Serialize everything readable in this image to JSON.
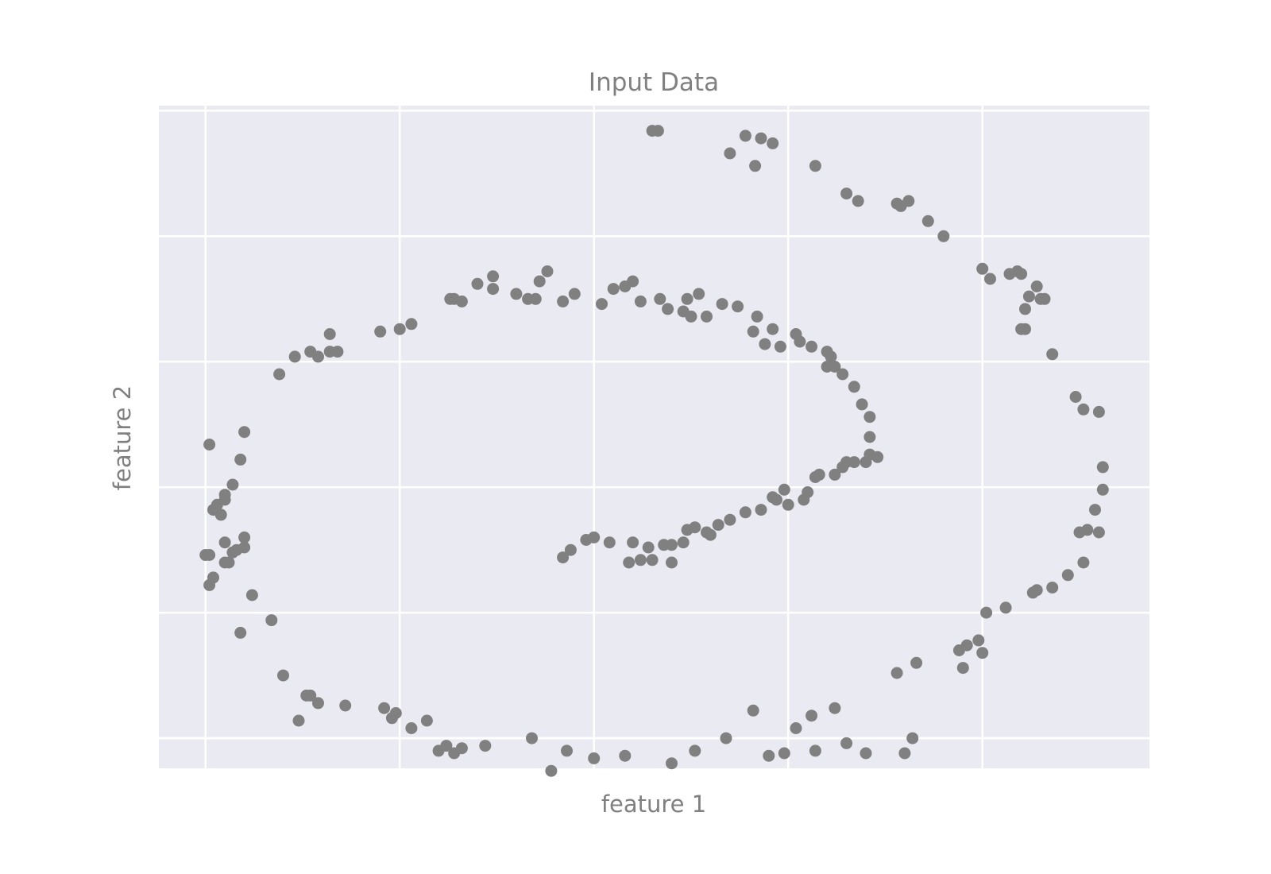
{
  "chart_data": {
    "type": "scatter",
    "title": "Input Data",
    "xlabel": "feature 1",
    "ylabel": "feature 2",
    "xlim": [
      -1.12,
      1.43
    ],
    "ylim": [
      -1.12,
      1.52
    ],
    "x_gridlines": [
      -1.0,
      -0.5,
      0.0,
      0.5,
      1.0
    ],
    "y_gridlines": [
      -1.0,
      -0.5,
      0.0,
      0.5,
      1.0,
      1.5
    ],
    "tick_labels_visible": false,
    "grid": true,
    "background_color": "#eaeaf2",
    "grid_color": "#ffffff",
    "point_color": "#808080",
    "points": [
      [
        0.15,
        1.42
      ],
      [
        0.165,
        1.42
      ],
      [
        0.39,
        1.4
      ],
      [
        0.43,
        1.39
      ],
      [
        0.35,
        1.33
      ],
      [
        0.46,
        1.37
      ],
      [
        0.415,
        1.28
      ],
      [
        0.57,
        1.28
      ],
      [
        0.65,
        1.17
      ],
      [
        0.68,
        1.14
      ],
      [
        0.78,
        1.13
      ],
      [
        0.81,
        1.14
      ],
      [
        0.79,
        1.12
      ],
      [
        0.86,
        1.06
      ],
      [
        0.9,
        1.0
      ],
      [
        1.0,
        0.87
      ],
      [
        1.02,
        0.83
      ],
      [
        1.07,
        0.85
      ],
      [
        1.1,
        0.85
      ],
      [
        1.09,
        0.86
      ],
      [
        1.14,
        0.8
      ],
      [
        1.11,
        0.71
      ],
      [
        1.12,
        0.76
      ],
      [
        1.15,
        0.75
      ],
      [
        1.16,
        0.75
      ],
      [
        1.1,
        0.63
      ],
      [
        1.11,
        0.63
      ],
      [
        1.18,
        0.53
      ],
      [
        1.24,
        0.36
      ],
      [
        1.26,
        0.31
      ],
      [
        1.3,
        0.3
      ],
      [
        1.31,
        0.08
      ],
      [
        1.31,
        -0.01
      ],
      [
        1.29,
        -0.09
      ],
      [
        1.3,
        -0.18
      ],
      [
        1.27,
        -0.17
      ],
      [
        1.25,
        -0.18
      ],
      [
        1.26,
        -0.3
      ],
      [
        1.22,
        -0.35
      ],
      [
        1.18,
        -0.4
      ],
      [
        1.14,
        -0.41
      ],
      [
        1.13,
        -0.42
      ],
      [
        1.01,
        -0.5
      ],
      [
        1.06,
        -0.48
      ],
      [
        0.99,
        -0.61
      ],
      [
        1.0,
        -0.66
      ],
      [
        0.96,
        -0.63
      ],
      [
        0.94,
        -0.65
      ],
      [
        0.95,
        -0.72
      ],
      [
        0.78,
        -0.74
      ],
      [
        0.83,
        -0.7
      ],
      [
        0.2,
        -1.1
      ],
      [
        0.26,
        -1.05
      ],
      [
        0.52,
        -0.96
      ],
      [
        0.56,
        -0.91
      ],
      [
        0.62,
        -0.88
      ],
      [
        0.41,
        -0.89
      ],
      [
        0.34,
        -1.0
      ],
      [
        0.45,
        -1.07
      ],
      [
        0.49,
        -1.06
      ],
      [
        0.82,
        -1.0
      ],
      [
        0.8,
        -1.06
      ],
      [
        0.7,
        -1.06
      ],
      [
        0.65,
        -1.02
      ],
      [
        0.57,
        -1.05
      ],
      [
        0.0,
        -1.08
      ],
      [
        0.08,
        -1.07
      ],
      [
        -0.16,
        -1.0
      ],
      [
        -0.07,
        -1.05
      ],
      [
        -0.11,
        -1.13
      ],
      [
        -0.4,
        -1.05
      ],
      [
        -0.34,
        -1.04
      ],
      [
        -0.28,
        -1.03
      ],
      [
        -0.36,
        -1.06
      ],
      [
        -0.38,
        -1.03
      ],
      [
        -0.47,
        -0.96
      ],
      [
        -0.43,
        -0.93
      ],
      [
        -0.54,
        -0.88
      ],
      [
        -0.51,
        -0.9
      ],
      [
        -0.52,
        -0.92
      ],
      [
        -0.8,
        -0.75
      ],
      [
        -0.74,
        -0.83
      ],
      [
        -0.73,
        -0.83
      ],
      [
        -0.71,
        -0.86
      ],
      [
        -0.64,
        -0.87
      ],
      [
        -0.76,
        -0.93
      ],
      [
        -0.83,
        -0.53
      ],
      [
        -0.91,
        -0.58
      ],
      [
        -0.99,
        -0.39
      ],
      [
        -0.98,
        -0.36
      ],
      [
        -0.95,
        -0.3
      ],
      [
        -0.94,
        -0.3
      ],
      [
        -0.92,
        -0.25
      ],
      [
        -0.9,
        -0.2
      ],
      [
        -0.88,
        -0.43
      ],
      [
        -0.9,
        -0.24
      ],
      [
        -0.93,
        -0.26
      ],
      [
        -0.95,
        -0.22
      ],
      [
        -1.0,
        -0.27
      ],
      [
        -0.99,
        -0.27
      ],
      [
        -0.97,
        -0.07
      ],
      [
        -0.98,
        -0.09
      ],
      [
        -0.96,
        -0.11
      ],
      [
        -0.95,
        -0.05
      ],
      [
        -0.95,
        -0.03
      ],
      [
        -0.93,
        0.01
      ],
      [
        -0.91,
        0.11
      ],
      [
        -0.9,
        0.22
      ],
      [
        -0.99,
        0.17
      ],
      [
        -0.81,
        0.45
      ],
      [
        -0.77,
        0.52
      ],
      [
        -0.73,
        0.54
      ],
      [
        -0.71,
        0.52
      ],
      [
        -0.68,
        0.54
      ],
      [
        -0.66,
        0.54
      ],
      [
        -0.68,
        0.61
      ],
      [
        -0.55,
        0.62
      ],
      [
        -0.5,
        0.63
      ],
      [
        -0.47,
        0.65
      ],
      [
        -0.37,
        0.75
      ],
      [
        -0.36,
        0.75
      ],
      [
        -0.34,
        0.74
      ],
      [
        -0.3,
        0.81
      ],
      [
        -0.26,
        0.84
      ],
      [
        -0.26,
        0.79
      ],
      [
        -0.2,
        0.77
      ],
      [
        -0.17,
        0.75
      ],
      [
        -0.15,
        0.75
      ],
      [
        -0.14,
        0.82
      ],
      [
        -0.12,
        0.86
      ],
      [
        -0.08,
        0.74
      ],
      [
        -0.05,
        0.77
      ],
      [
        0.02,
        0.73
      ],
      [
        0.05,
        0.79
      ],
      [
        0.08,
        0.8
      ],
      [
        0.1,
        0.82
      ],
      [
        0.12,
        0.74
      ],
      [
        0.17,
        0.75
      ],
      [
        0.19,
        0.71
      ],
      [
        0.23,
        0.7
      ],
      [
        0.24,
        0.75
      ],
      [
        0.27,
        0.77
      ],
      [
        0.25,
        0.68
      ],
      [
        0.29,
        0.68
      ],
      [
        0.33,
        0.73
      ],
      [
        0.37,
        0.72
      ],
      [
        0.41,
        0.62
      ],
      [
        0.42,
        0.68
      ],
      [
        0.46,
        0.63
      ],
      [
        0.44,
        0.57
      ],
      [
        0.48,
        0.56
      ],
      [
        0.52,
        0.61
      ],
      [
        0.53,
        0.58
      ],
      [
        0.56,
        0.56
      ],
      [
        0.6,
        0.54
      ],
      [
        0.61,
        0.52
      ],
      [
        0.62,
        0.48
      ],
      [
        0.6,
        0.48
      ],
      [
        0.64,
        0.45
      ],
      [
        0.67,
        0.4
      ],
      [
        0.69,
        0.33
      ],
      [
        0.71,
        0.28
      ],
      [
        0.71,
        0.2
      ],
      [
        0.71,
        0.13
      ],
      [
        0.7,
        0.1
      ],
      [
        0.73,
        0.12
      ],
      [
        0.67,
        0.1
      ],
      [
        0.64,
        0.08
      ],
      [
        0.62,
        0.05
      ],
      [
        0.65,
        0.1
      ],
      [
        0.57,
        0.04
      ],
      [
        0.58,
        0.05
      ],
      [
        0.55,
        -0.02
      ],
      [
        0.54,
        -0.05
      ],
      [
        0.5,
        -0.07
      ],
      [
        0.49,
        -0.01
      ],
      [
        0.46,
        -0.04
      ],
      [
        0.47,
        -0.05
      ],
      [
        0.43,
        -0.09
      ],
      [
        0.39,
        -0.1
      ],
      [
        0.35,
        -0.13
      ],
      [
        0.32,
        -0.15
      ],
      [
        0.29,
        -0.18
      ],
      [
        0.26,
        -0.16
      ],
      [
        0.24,
        -0.17
      ],
      [
        0.23,
        -0.22
      ],
      [
        0.2,
        -0.23
      ],
      [
        0.18,
        -0.23
      ],
      [
        0.14,
        -0.24
      ],
      [
        0.1,
        -0.22
      ],
      [
        0.04,
        -0.22
      ],
      [
        0.0,
        -0.2
      ],
      [
        -0.02,
        -0.21
      ],
      [
        -0.06,
        -0.25
      ],
      [
        -0.08,
        -0.28
      ],
      [
        0.09,
        -0.3
      ],
      [
        0.12,
        -0.29
      ],
      [
        0.15,
        -0.29
      ],
      [
        0.2,
        -0.3
      ],
      [
        0.3,
        -0.19
      ]
    ]
  }
}
